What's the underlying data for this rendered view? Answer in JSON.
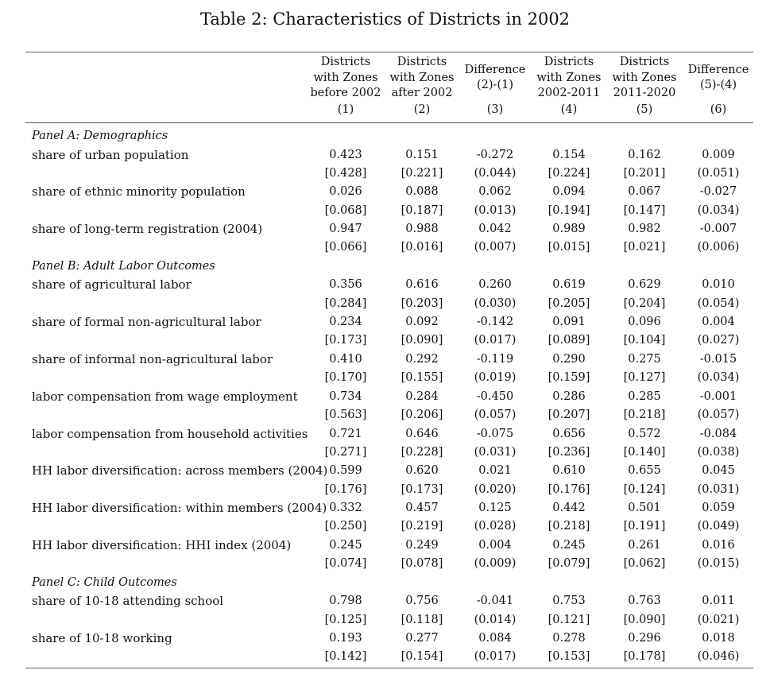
{
  "title": "Table 2: Characteristics of Districts in 2002",
  "columns": [
    {
      "lines": [
        "Districts",
        "with Zones",
        "before 2002"
      ],
      "num": "(1)"
    },
    {
      "lines": [
        "Districts",
        "with Zones",
        "after 2002"
      ],
      "num": "(2)"
    },
    {
      "lines": [
        "Difference",
        "(2)-(1)"
      ],
      "num": "(3)"
    },
    {
      "lines": [
        "Districts",
        "with Zones",
        "2002-2011"
      ],
      "num": "(4)"
    },
    {
      "lines": [
        "Districts",
        "with Zones",
        "2011-2020"
      ],
      "num": "(5)"
    },
    {
      "lines": [
        "Difference",
        "(5)-(4)"
      ],
      "num": "(6)"
    }
  ],
  "panels": [
    {
      "title": "Panel A: Demographics",
      "rows": [
        {
          "label": "share of urban population",
          "values": [
            "0.423",
            "0.151",
            "-0.272",
            "0.154",
            "0.162",
            "0.009"
          ],
          "errors": [
            "[0.428]",
            "[0.221]",
            "(0.044)",
            "[0.224]",
            "[0.201]",
            "(0.051)"
          ]
        },
        {
          "label": "share of ethnic minority population",
          "values": [
            "0.026",
            "0.088",
            "0.062",
            "0.094",
            "0.067",
            "-0.027"
          ],
          "errors": [
            "[0.068]",
            "[0.187]",
            "(0.013)",
            "[0.194]",
            "[0.147]",
            "(0.034)"
          ]
        },
        {
          "label": "share of long-term registration (2004)",
          "values": [
            "0.947",
            "0.988",
            "0.042",
            "0.989",
            "0.982",
            "-0.007"
          ],
          "errors": [
            "[0.066]",
            "[0.016]",
            "(0.007)",
            "[0.015]",
            "[0.021]",
            "(0.006)"
          ]
        }
      ]
    },
    {
      "title": "Panel B: Adult Labor Outcomes",
      "rows": [
        {
          "label": "share of agricultural labor",
          "values": [
            "0.356",
            "0.616",
            "0.260",
            "0.619",
            "0.629",
            "0.010"
          ],
          "errors": [
            "[0.284]",
            "[0.203]",
            "(0.030)",
            "[0.205]",
            "[0.204]",
            "(0.054)"
          ]
        },
        {
          "label": "share of formal non-agricultural labor",
          "values": [
            "0.234",
            "0.092",
            "-0.142",
            "0.091",
            "0.096",
            "0.004"
          ],
          "errors": [
            "[0.173]",
            "[0.090]",
            "(0.017)",
            "[0.089]",
            "[0.104]",
            "(0.027)"
          ]
        },
        {
          "label": "share of informal non-agricultural labor",
          "values": [
            "0.410",
            "0.292",
            "-0.119",
            "0.290",
            "0.275",
            "-0.015"
          ],
          "errors": [
            "[0.170]",
            "[0.155]",
            "(0.019)",
            "[0.159]",
            "[0.127]",
            "(0.034)"
          ]
        },
        {
          "label": "labor compensation from wage employment",
          "values": [
            "0.734",
            "0.284",
            "-0.450",
            "0.286",
            "0.285",
            "-0.001"
          ],
          "errors": [
            "[0.563]",
            "[0.206]",
            "(0.057)",
            "[0.207]",
            "[0.218]",
            "(0.057)"
          ]
        },
        {
          "label": "labor compensation from household activities",
          "values": [
            "0.721",
            "0.646",
            "-0.075",
            "0.656",
            "0.572",
            "-0.084"
          ],
          "errors": [
            "[0.271]",
            "[0.228]",
            "(0.031)",
            "[0.236]",
            "[0.140]",
            "(0.038)"
          ]
        },
        {
          "label": "HH labor diversification: across members (2004)",
          "values": [
            "0.599",
            "0.620",
            "0.021",
            "0.610",
            "0.655",
            "0.045"
          ],
          "errors": [
            "[0.176]",
            "[0.173]",
            "(0.020)",
            "[0.176]",
            "[0.124]",
            "(0.031)"
          ]
        },
        {
          "label": "HH labor diversification: within members (2004)",
          "values": [
            "0.332",
            "0.457",
            "0.125",
            "0.442",
            "0.501",
            "0.059"
          ],
          "errors": [
            "[0.250]",
            "[0.219]",
            "(0.028)",
            "[0.218]",
            "[0.191]",
            "(0.049)"
          ]
        },
        {
          "label": "HH labor diversification: HHI index (2004)",
          "values": [
            "0.245",
            "0.249",
            "0.004",
            "0.245",
            "0.261",
            "0.016"
          ],
          "errors": [
            "[0.074]",
            "[0.078]",
            "(0.009)",
            "[0.079]",
            "[0.062]",
            "(0.015)"
          ]
        }
      ]
    },
    {
      "title": "Panel C: Child Outcomes",
      "rows": [
        {
          "label": "share of 10-18 attending school",
          "values": [
            "0.798",
            "0.756",
            "-0.041",
            "0.753",
            "0.763",
            "0.011"
          ],
          "errors": [
            "[0.125]",
            "[0.118]",
            "(0.014)",
            "[0.121]",
            "[0.090]",
            "(0.021)"
          ]
        },
        {
          "label": "share of 10-18 working",
          "values": [
            "0.193",
            "0.277",
            "0.084",
            "0.278",
            "0.296",
            "0.018"
          ],
          "errors": [
            "[0.142]",
            "[0.154]",
            "(0.017)",
            "[0.153]",
            "[0.178]",
            "(0.046)"
          ]
        }
      ]
    }
  ]
}
